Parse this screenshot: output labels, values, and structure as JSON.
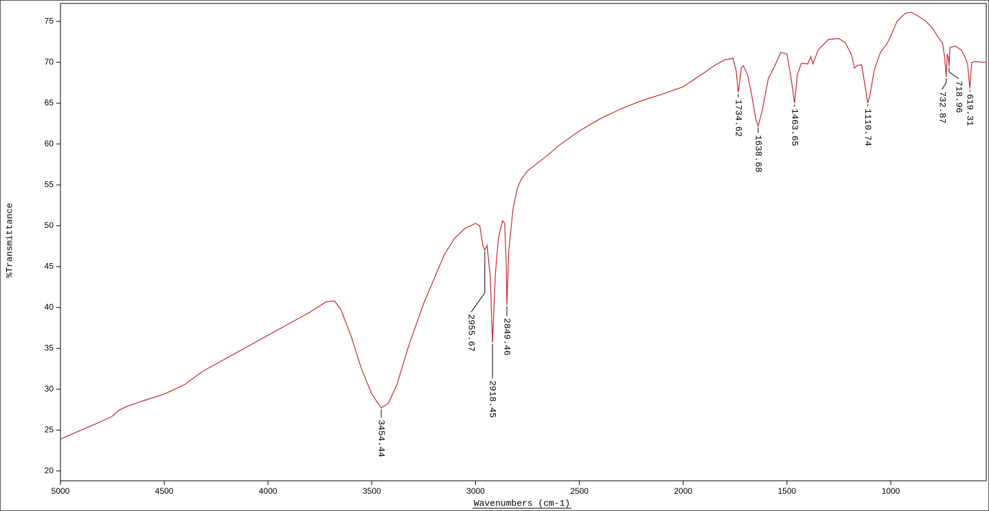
{
  "chart_data": {
    "type": "line",
    "x_label": "Wavenumbers (cm-1)",
    "y_label": "%Transmittance",
    "color": "#c0282d",
    "xlim": [
      5000,
      540
    ],
    "ylim": [
      18.8,
      77.2
    ],
    "xticks": [
      5000,
      4500,
      4000,
      3500,
      3000,
      2500,
      2000,
      1500,
      1000
    ],
    "yticks": [
      20,
      25,
      30,
      35,
      40,
      45,
      50,
      55,
      60,
      65,
      70,
      75
    ],
    "x": [
      5000,
      4900,
      4800,
      4750,
      4720,
      4680,
      4600,
      4500,
      4400,
      4320,
      4300,
      4200,
      4100,
      4000,
      3900,
      3800,
      3720,
      3680,
      3650,
      3600,
      3550,
      3500,
      3454.44,
      3420,
      3380,
      3320,
      3250,
      3200,
      3150,
      3100,
      3050,
      3000,
      2980,
      2965,
      2955.67,
      2945,
      2930,
      2918.45,
      2905,
      2890,
      2870,
      2860,
      2852,
      2849.46,
      2840,
      2820,
      2800,
      2780,
      2750,
      2700,
      2650,
      2600,
      2500,
      2400,
      2300,
      2200,
      2100,
      2000,
      1900,
      1850,
      1800,
      1760,
      1745,
      1734.62,
      1720,
      1710,
      1690,
      1670,
      1650,
      1638.68,
      1620,
      1590,
      1560,
      1530,
      1500,
      1480,
      1463.65,
      1450,
      1430,
      1400,
      1385,
      1375,
      1350,
      1300,
      1250,
      1220,
      1190,
      1175,
      1160,
      1140,
      1120,
      1110.74,
      1100,
      1080,
      1050,
      1020,
      1000,
      970,
      930,
      900,
      870,
      830,
      800,
      770,
      750,
      740,
      732.87,
      728,
      722,
      718.96,
      715,
      690,
      660,
      640,
      630,
      619.31,
      610,
      590,
      560,
      540
    ],
    "values": [
      23.9,
      25.0,
      26.1,
      26.7,
      27.4,
      27.9,
      28.6,
      29.4,
      30.6,
      32.1,
      32.4,
      33.8,
      35.2,
      36.6,
      38.0,
      39.4,
      40.7,
      40.8,
      39.8,
      36.5,
      32.5,
      29.4,
      27.7,
      28.3,
      30.5,
      35.5,
      40.5,
      43.5,
      46.5,
      48.5,
      49.7,
      50.3,
      50.0,
      47.6,
      47.0,
      47.6,
      44.0,
      35.7,
      44.0,
      48.5,
      50.6,
      50.3,
      45.0,
      40.3,
      47.0,
      52.0,
      54.5,
      55.7,
      56.7,
      57.7,
      58.7,
      59.8,
      61.6,
      63.1,
      64.3,
      65.3,
      66.1,
      67.0,
      68.7,
      69.6,
      70.3,
      70.5,
      69.0,
      66.3,
      69.3,
      69.6,
      68.5,
      66.0,
      63.0,
      62.2,
      64.0,
      68.0,
      69.5,
      71.2,
      71.0,
      68.0,
      65.0,
      68.5,
      69.9,
      69.8,
      70.7,
      69.8,
      71.5,
      72.8,
      72.9,
      72.4,
      71.0,
      69.3,
      69.6,
      69.7,
      66.5,
      65.0,
      66.0,
      69.0,
      71.2,
      72.2,
      73.2,
      75.0,
      76.0,
      76.1,
      75.7,
      75.0,
      74.2,
      73.0,
      72.3,
      70.5,
      68.2,
      71.0,
      70.5,
      69.5,
      71.8,
      72.0,
      71.5,
      70.5,
      69.8,
      66.8,
      70.0,
      70.1,
      70.0,
      70.0
    ],
    "peaks": {
      "x": [
        3454.44,
        2955.67,
        2918.45,
        2849.46,
        1734.62,
        1638.68,
        1463.65,
        1110.74,
        732.87,
        718.96,
        619.31
      ],
      "y": [
        27.7,
        47.0,
        35.7,
        40.3,
        66.3,
        62.2,
        65.0,
        65.0,
        68.2,
        69.5,
        66.8
      ]
    }
  }
}
